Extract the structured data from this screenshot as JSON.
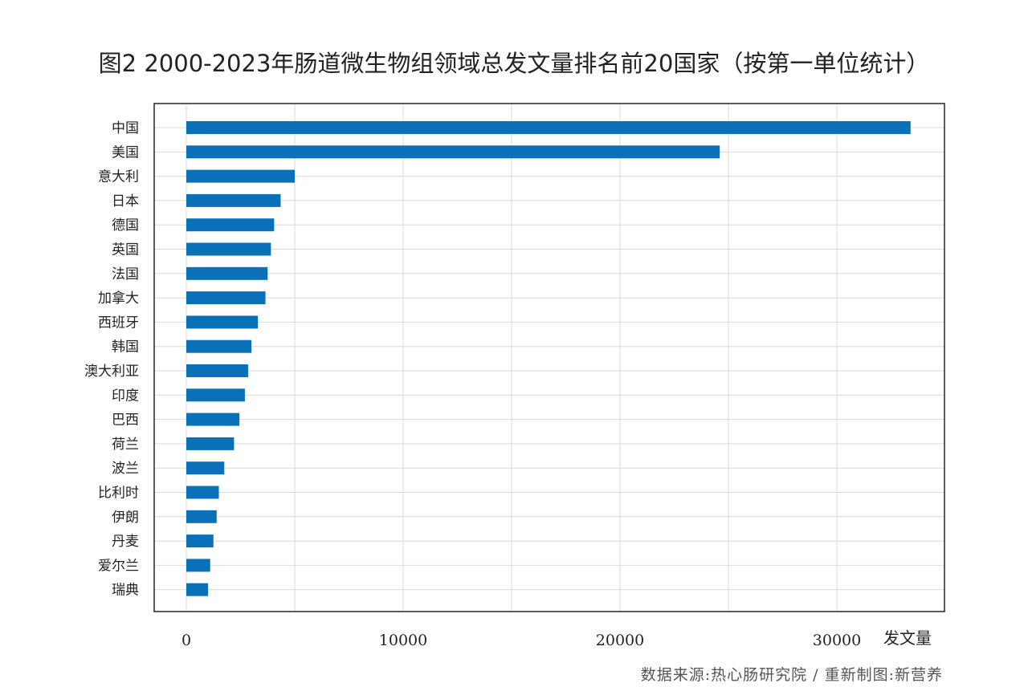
{
  "title": "图2 2000-2023年肠道微生物组领域总发文量排名前20国家（按第一单位统计）",
  "source_note": "数据来源:热心肠研究院 / 重新制图:新营养",
  "colors": {
    "bar": "#0a71b8",
    "grid": "#d9d9d9",
    "frame": "#333333"
  },
  "chart_data": {
    "type": "bar",
    "orientation": "horizontal",
    "title": "图2 2000-2023年肠道微生物组领域总发文量排名前20国家（按第一单位统计）",
    "xlabel": "发文量",
    "ylabel": "",
    "xlim": [
      0,
      35000
    ],
    "xticks": [
      0,
      10000,
      20000,
      30000
    ],
    "grid": true,
    "categories": [
      "中国",
      "美国",
      "意大利",
      "日本",
      "德国",
      "英国",
      "法国",
      "加拿大",
      "西班牙",
      "韩国",
      "澳大利亚",
      "印度",
      "巴西",
      "荷兰",
      "波兰",
      "比利时",
      "伊朗",
      "丹麦",
      "爱尔兰",
      "瑞典"
    ],
    "values": [
      33400,
      24600,
      5000,
      4350,
      4050,
      3900,
      3750,
      3650,
      3300,
      3000,
      2850,
      2700,
      2450,
      2200,
      1750,
      1500,
      1400,
      1250,
      1100,
      1000
    ]
  }
}
